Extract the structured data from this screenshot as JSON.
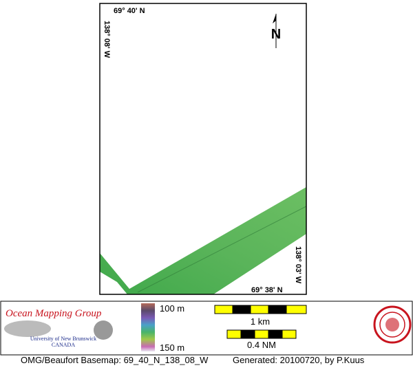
{
  "map": {
    "labels": {
      "top_left": "69° 40' N",
      "left": "138° 08' W",
      "bottom_right": "69° 38' N",
      "right": "138° 03' W",
      "north": "N"
    },
    "legend": {
      "organization": "Ocean Mapping Group",
      "university": "University of New Brunswick",
      "country": "CANADA",
      "depth_top": "100 m",
      "depth_bottom": "150 m",
      "scale_km": "1 km",
      "scale_nm": "0.4 NM"
    },
    "footer": {
      "basemap": "OMG/Beaufort Basemap: 69_40_N_138_08_W",
      "generated": "Generated: 20100720, by P.Kuus"
    }
  }
}
